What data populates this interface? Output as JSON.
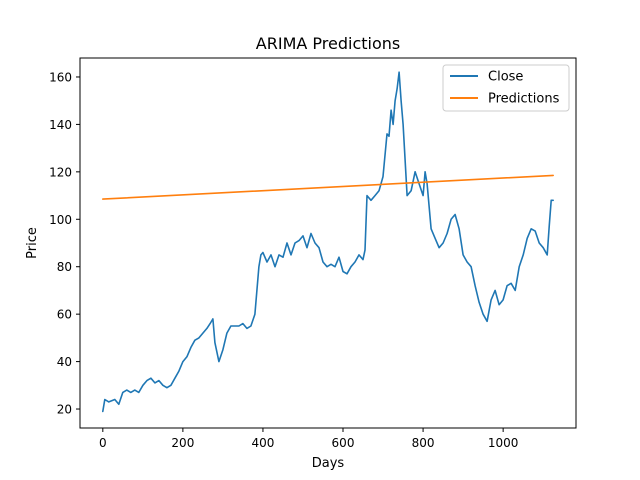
{
  "chart_data": {
    "type": "line",
    "title": "ARIMA Predictions",
    "xlabel": "Days",
    "ylabel": "Price",
    "xlim": [
      -57,
      1182
    ],
    "ylim": [
      12,
      168
    ],
    "xticks": [
      0,
      200,
      400,
      600,
      800,
      1000
    ],
    "yticks": [
      20,
      40,
      60,
      80,
      100,
      120,
      140,
      160
    ],
    "grid": false,
    "legend": {
      "placement": "top-right",
      "entries": [
        "Close",
        "Predictions"
      ]
    },
    "series": [
      {
        "name": "Close",
        "color": "#1f77b4",
        "x": [
          0,
          5,
          15,
          30,
          40,
          50,
          60,
          70,
          80,
          90,
          100,
          110,
          120,
          130,
          140,
          150,
          160,
          170,
          180,
          190,
          200,
          210,
          220,
          230,
          240,
          250,
          260,
          268,
          275,
          280,
          290,
          300,
          310,
          320,
          330,
          340,
          350,
          360,
          370,
          380,
          390,
          395,
          400,
          410,
          420,
          430,
          440,
          450,
          460,
          470,
          480,
          490,
          500,
          510,
          520,
          530,
          540,
          550,
          560,
          570,
          580,
          590,
          600,
          610,
          620,
          630,
          640,
          650,
          655,
          660,
          670,
          680,
          690,
          700,
          710,
          715,
          720,
          725,
          730,
          735,
          740,
          745,
          750,
          760,
          770,
          780,
          790,
          800,
          805,
          810,
          820,
          830,
          840,
          850,
          860,
          870,
          880,
          890,
          900,
          910,
          920,
          930,
          940,
          950,
          960,
          970,
          980,
          990,
          1000,
          1010,
          1020,
          1030,
          1040,
          1050,
          1060,
          1070,
          1080,
          1090,
          1100,
          1110,
          1115,
          1120,
          1125
        ],
        "y": [
          19,
          24,
          23,
          24,
          22,
          27,
          28,
          27,
          28,
          27,
          30,
          32,
          33,
          31,
          32,
          30,
          29,
          30,
          33,
          36,
          40,
          42,
          46,
          49,
          50,
          52,
          54,
          56,
          58,
          48,
          40,
          45,
          52,
          55,
          55,
          55,
          56,
          54,
          55,
          60,
          80,
          85,
          86,
          82,
          85,
          80,
          85,
          84,
          90,
          85,
          90,
          91,
          93,
          88,
          94,
          90,
          88,
          82,
          80,
          81,
          80,
          84,
          78,
          77,
          80,
          82,
          85,
          83,
          87,
          110,
          108,
          110,
          112,
          118,
          136,
          135,
          146,
          140,
          150,
          155,
          162,
          150,
          140,
          110,
          112,
          120,
          115,
          110,
          120,
          115,
          96,
          92,
          88,
          90,
          94,
          100,
          102,
          96,
          85,
          82,
          80,
          72,
          65,
          60,
          57,
          66,
          70,
          64,
          66,
          72,
          73,
          70,
          80,
          85,
          92,
          96,
          95,
          90,
          88,
          85,
          97,
          108,
          108
        ],
        "note": "approximate trace of the Close series; 1126 daily points"
      },
      {
        "name": "Predictions",
        "color": "#ff7f0e",
        "x": [
          0,
          1125
        ],
        "y": [
          108.5,
          118.5
        ]
      }
    ]
  }
}
